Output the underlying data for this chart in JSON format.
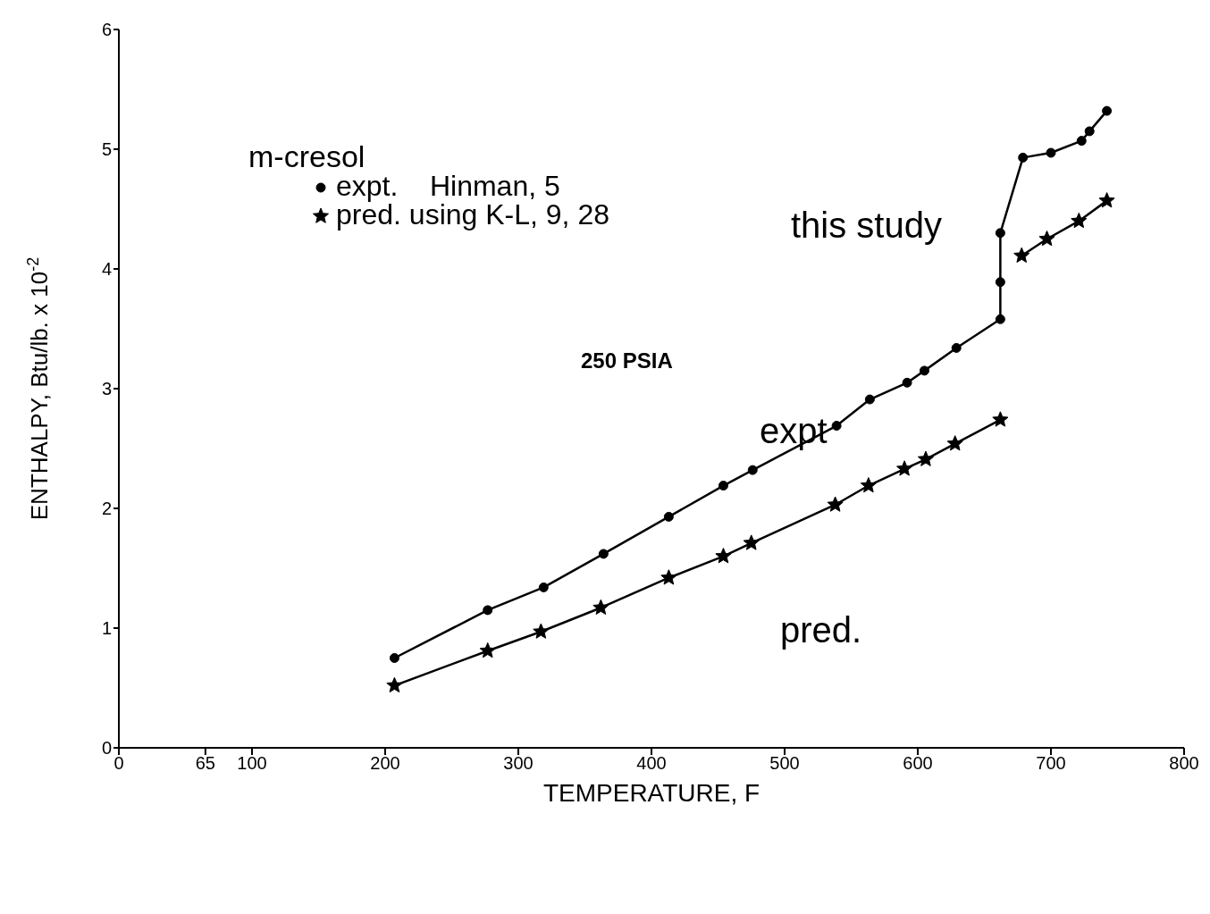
{
  "chart_data": {
    "type": "line",
    "xlabel": "TEMPERATURE, F",
    "ylabel": "ENTHALPY, Btu/lb. x 10$^{-2}$",
    "legend_title": "m-cresol",
    "legend": "top left",
    "line_style": "solid",
    "xlim": [
      0,
      800
    ],
    "xticks": [
      0,
      65,
      100,
      200,
      300,
      400,
      500,
      600,
      700,
      800
    ],
    "ylim": [
      0,
      6
    ],
    "yticks": [
      0,
      1,
      2,
      3,
      4,
      5,
      6
    ],
    "series": [
      {
        "name": "expt.    Hinman, 5",
        "color": "#000000",
        "marker": "circle",
        "x": [
          207,
          277,
          319,
          364,
          413,
          454,
          476,
          539,
          564,
          592,
          605,
          629,
          662,
          662,
          662,
          679,
          700,
          723,
          729,
          742
        ],
        "values": [
          0.75,
          1.15,
          1.34,
          1.62,
          1.93,
          2.19,
          2.32,
          2.69,
          2.91,
          3.05,
          3.15,
          3.34,
          3.58,
          3.89,
          4.3,
          4.93,
          4.97,
          5.07,
          5.15,
          5.32
        ]
      },
      {
        "name": "pred. using K-L, 9, 28",
        "color": "#000000",
        "marker": "star",
        "x": [
          207,
          277,
          317,
          362,
          413,
          454,
          475,
          538,
          563,
          590,
          606,
          628,
          662,
          670,
          678,
          697,
          721,
          742
        ],
        "values": [
          0.52,
          0.81,
          0.97,
          1.17,
          1.42,
          1.6,
          1.71,
          2.03,
          2.19,
          2.33,
          2.41,
          2.54,
          2.74,
          null,
          4.11,
          4.25,
          4.4,
          4.57
        ]
      }
    ],
    "annotations": [
      "250 PSIA",
      "this study",
      "expt",
      "pred."
    ]
  }
}
